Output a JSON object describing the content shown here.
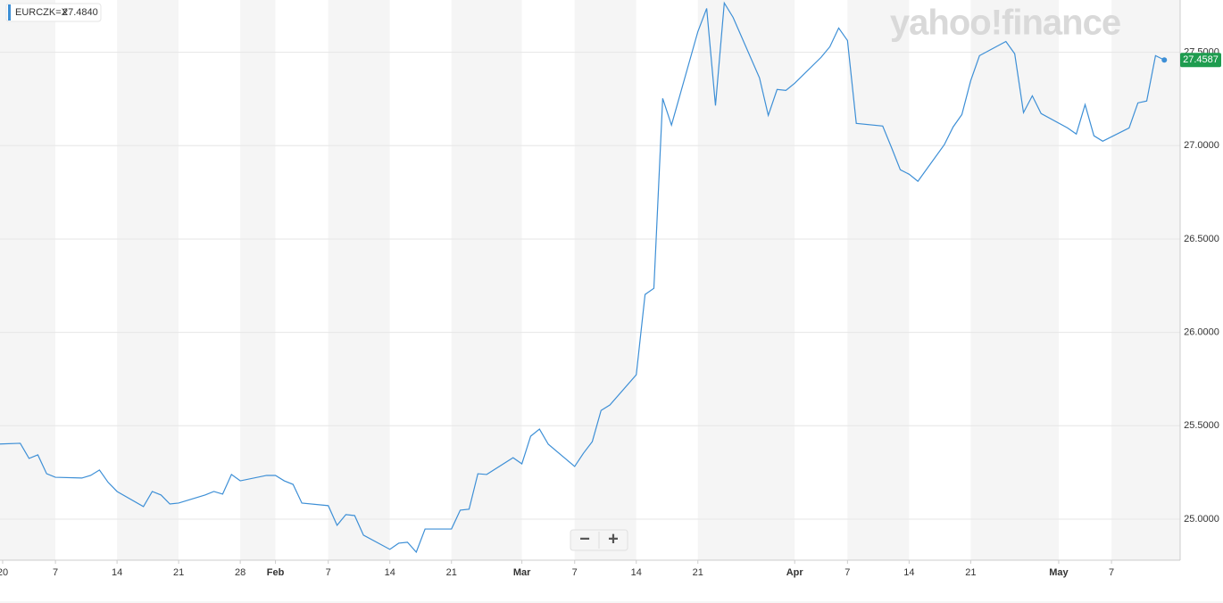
{
  "chart_data": {
    "type": "line",
    "watermark": "yahoo!finance",
    "legend_value": "27.4840",
    "zoom_controls": [
      "−",
      "+"
    ],
    "x": [
      0,
      3,
      4,
      5,
      6,
      7,
      10,
      11,
      12,
      13,
      14,
      17,
      18,
      19,
      20,
      21,
      24,
      25,
      26,
      27,
      28,
      31,
      32,
      33,
      34,
      35,
      38,
      39,
      40,
      41,
      42,
      45,
      46,
      47,
      48,
      49,
      52,
      53,
      54,
      55,
      56,
      59,
      60,
      61,
      62,
      63,
      66,
      67,
      68,
      69,
      70,
      73,
      74,
      75,
      76,
      77,
      80,
      81,
      82,
      83,
      84,
      87,
      88,
      89,
      90,
      91,
      94,
      95,
      96,
      97,
      98,
      101,
      102,
      103,
      104,
      105,
      108,
      109,
      110,
      111,
      112,
      115,
      116,
      117,
      118,
      119,
      122,
      123,
      124,
      125,
      126,
      129,
      130,
      131,
      132,
      133
    ],
    "series": [
      {
        "name": "EURCZK=X",
        "color": "#3d8fd6",
        "values": [
          25.401,
          25.406,
          25.325,
          25.344,
          25.243,
          25.224,
          25.22,
          25.234,
          25.263,
          25.196,
          25.148,
          25.067,
          25.148,
          25.129,
          25.081,
          25.086,
          25.129,
          25.148,
          25.134,
          25.239,
          25.205,
          25.234,
          25.234,
          25.205,
          25.186,
          25.086,
          25.072,
          24.967,
          25.024,
          25.019,
          24.914,
          24.838,
          24.871,
          24.876,
          24.823,
          24.947,
          24.947,
          25.048,
          25.053,
          25.243,
          25.239,
          25.329,
          25.296,
          25.444,
          25.482,
          25.401,
          25.282,
          25.353,
          25.415,
          25.582,
          25.611,
          25.773,
          26.203,
          26.236,
          27.253,
          27.11,
          27.611,
          27.735,
          27.215,
          27.764,
          27.687,
          27.363,
          27.162,
          27.301,
          27.296,
          27.334,
          27.473,
          27.53,
          27.63,
          27.563,
          27.119,
          27.105,
          26.99,
          26.871,
          26.847,
          26.809,
          27.005,
          27.1,
          27.167,
          27.348,
          27.482,
          27.558,
          27.492,
          27.177,
          27.267,
          27.172,
          27.095,
          27.062,
          27.22,
          27.053,
          27.024,
          27.095,
          27.229,
          27.239,
          27.482,
          27.4587
        ]
      }
    ],
    "xlim": [
      0.7,
      134.8
    ],
    "xticks": [
      {
        "value": 1,
        "label": "20"
      },
      7,
      14,
      21,
      28,
      {
        "value": 32,
        "label": "Feb"
      },
      {
        "value": 38,
        "label": "7"
      },
      {
        "value": 45,
        "label": "14"
      },
      {
        "value": 52,
        "label": "21"
      },
      {
        "value": 60,
        "label": "Mar"
      },
      {
        "value": 66,
        "label": "7"
      },
      {
        "value": 73,
        "label": "14"
      },
      {
        "value": 80,
        "label": "21"
      },
      {
        "value": 91,
        "label": "Apr"
      },
      {
        "value": 97,
        "label": "7"
      },
      {
        "value": 104,
        "label": "14"
      },
      {
        "value": 111,
        "label": "21"
      },
      {
        "value": 121,
        "label": "May"
      },
      {
        "value": 127,
        "label": "7"
      }
    ],
    "ylim": [
      24.78,
      27.78
    ],
    "yticks": [
      {
        "value": 25,
        "label": "25.0000"
      },
      {
        "value": 25.5,
        "label": "25.5000"
      },
      {
        "value": 26,
        "label": "26.0000"
      },
      {
        "value": 26.5,
        "label": "26.5000"
      },
      {
        "value": 27,
        "label": "27.0000"
      },
      {
        "value": 27.5,
        "label": "27.5000"
      }
    ],
    "grid": true
  }
}
